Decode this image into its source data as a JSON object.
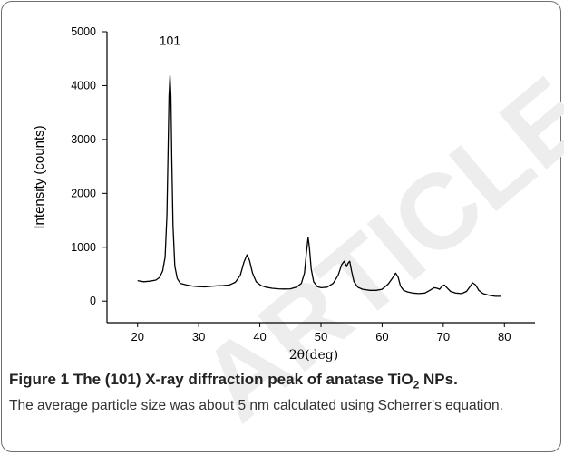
{
  "watermark": {
    "text": "ARTICLE",
    "color": "#ededed"
  },
  "chart_data": {
    "type": "line",
    "title": "",
    "xlabel": "2θ(deg)",
    "ylabel": "Intensity (counts)",
    "xlim": [
      15,
      85
    ],
    "ylim": [
      -400,
      5000
    ],
    "xticks": [
      20,
      30,
      40,
      50,
      60,
      70,
      80
    ],
    "yticks": [
      0,
      1000,
      2000,
      3000,
      4000,
      5000
    ],
    "grid": false,
    "annotations": [
      {
        "text": "101",
        "x": 25.3,
        "y": 4180
      }
    ],
    "series": [
      {
        "color": "#000000",
        "x": [
          20,
          21,
          22,
          23,
          23.6,
          24.1,
          24.5,
          24.8,
          25.0,
          25.15,
          25.3,
          25.45,
          25.6,
          25.8,
          26.1,
          26.5,
          27,
          28,
          29,
          30,
          31,
          32,
          33,
          34,
          35,
          36,
          36.8,
          37.4,
          37.9,
          38.3,
          38.8,
          39.4,
          40.2,
          41,
          42,
          43,
          44,
          45,
          46,
          46.8,
          47.3,
          47.6,
          47.9,
          48.1,
          48.4,
          48.8,
          49.4,
          50,
          51,
          52,
          52.8,
          53.4,
          53.8,
          54.2,
          54.4,
          54.7,
          55.0,
          55.4,
          56,
          56.8,
          58,
          59,
          60,
          61,
          61.7,
          62.2,
          62.6,
          63.0,
          63.5,
          64.2,
          65,
          66,
          67,
          67.8,
          68.5,
          69,
          69.4,
          69.8,
          70.2,
          70.6,
          71.2,
          72,
          73,
          73.8,
          74.3,
          74.8,
          75.3,
          75.8,
          76.5,
          77.5,
          78.5,
          79.5
        ],
        "y": [
          380,
          360,
          370,
          390,
          440,
          560,
          820,
          1600,
          2800,
          3800,
          4180,
          3800,
          2600,
          1400,
          650,
          420,
          330,
          300,
          280,
          270,
          265,
          275,
          285,
          290,
          300,
          350,
          480,
          720,
          860,
          760,
          520,
          360,
          290,
          260,
          240,
          230,
          225,
          230,
          260,
          330,
          520,
          880,
          1180,
          1000,
          600,
          360,
          270,
          250,
          260,
          330,
          480,
          680,
          740,
          640,
          700,
          740,
          560,
          360,
          260,
          220,
          200,
          200,
          220,
          320,
          430,
          520,
          450,
          280,
          200,
          170,
          150,
          140,
          150,
          200,
          250,
          240,
          220,
          280,
          300,
          250,
          180,
          150,
          140,
          180,
          260,
          340,
          300,
          200,
          140,
          110,
          90,
          90
        ]
      }
    ]
  },
  "caption": {
    "title": "Figure 1 The (101) X-ray diffraction peak of anatase TiO",
    "title_sub": "2",
    "title_tail": " NPs.",
    "body": "The average particle size was about 5 nm calculated using Scherrer's equation."
  }
}
